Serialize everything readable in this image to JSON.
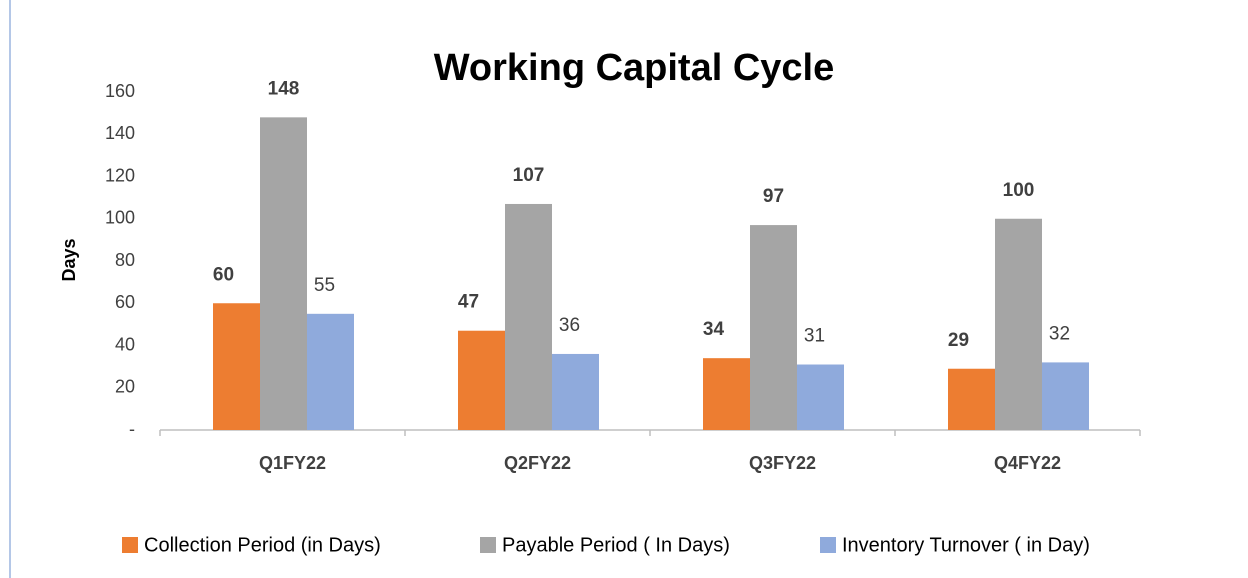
{
  "chart_data": {
    "type": "bar",
    "title": "Working Capital Cycle",
    "y_label": "Days",
    "categories": [
      "Q1FY22",
      "Q2FY22",
      "Q3FY22",
      "Q4FY22"
    ],
    "series": [
      {
        "name": "Collection Period (in Days)",
        "color": "#ed7d31",
        "values": [
          60,
          47,
          34,
          29
        ]
      },
      {
        "name": "Payable Period ( In Days)",
        "color": "#a5a5a5",
        "values": [
          148,
          107,
          97,
          100
        ]
      },
      {
        "name": "Inventory Turnover ( in Day)",
        "color": "#8faadc",
        "values": [
          55,
          36,
          31,
          32
        ]
      }
    ],
    "ylim": [
      0,
      160
    ],
    "yticks": [
      {
        "value": 0,
        "label": "-"
      },
      20,
      40,
      60,
      80,
      100,
      120,
      140,
      160
    ],
    "grid": false,
    "legend": "bottom"
  }
}
